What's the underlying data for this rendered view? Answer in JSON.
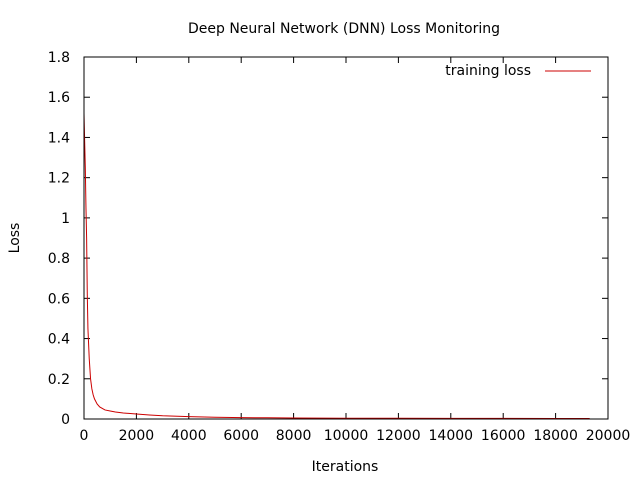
{
  "chart_data": {
    "type": "line",
    "title": "Deep Neural Network (DNN) Loss Monitoring",
    "xlabel": "Iterations",
    "ylabel": "Loss",
    "xlim": [
      0,
      20000
    ],
    "ylim": [
      0,
      1.8
    ],
    "x_ticks": [
      0,
      2000,
      4000,
      6000,
      8000,
      10000,
      12000,
      14000,
      16000,
      18000,
      20000
    ],
    "y_ticks": [
      "0",
      "0.2",
      "0.4",
      "0.6",
      "0.8",
      "1",
      "1.2",
      "1.4",
      "1.6",
      "1.8"
    ],
    "grid": false,
    "legend_position": "top-right",
    "series": [
      {
        "name": "training loss",
        "color": "#cc0000",
        "x": [
          0,
          25,
          50,
          75,
          100,
          125,
          150,
          200,
          250,
          300,
          350,
          400,
          500,
          600,
          800,
          1000,
          1200,
          1500,
          2000,
          2500,
          3000,
          4000,
          5000,
          6000,
          7000,
          8000,
          10000,
          12000,
          14000,
          16000,
          18000,
          19300
        ],
        "y": [
          1.52,
          1.38,
          1.25,
          1.05,
          0.9,
          0.62,
          0.45,
          0.3,
          0.2,
          0.15,
          0.12,
          0.1,
          0.075,
          0.06,
          0.045,
          0.04,
          0.035,
          0.03,
          0.025,
          0.02,
          0.016,
          0.012,
          0.009,
          0.007,
          0.006,
          0.005,
          0.004,
          0.0035,
          0.003,
          0.003,
          0.0025,
          0.0025
        ]
      }
    ]
  }
}
